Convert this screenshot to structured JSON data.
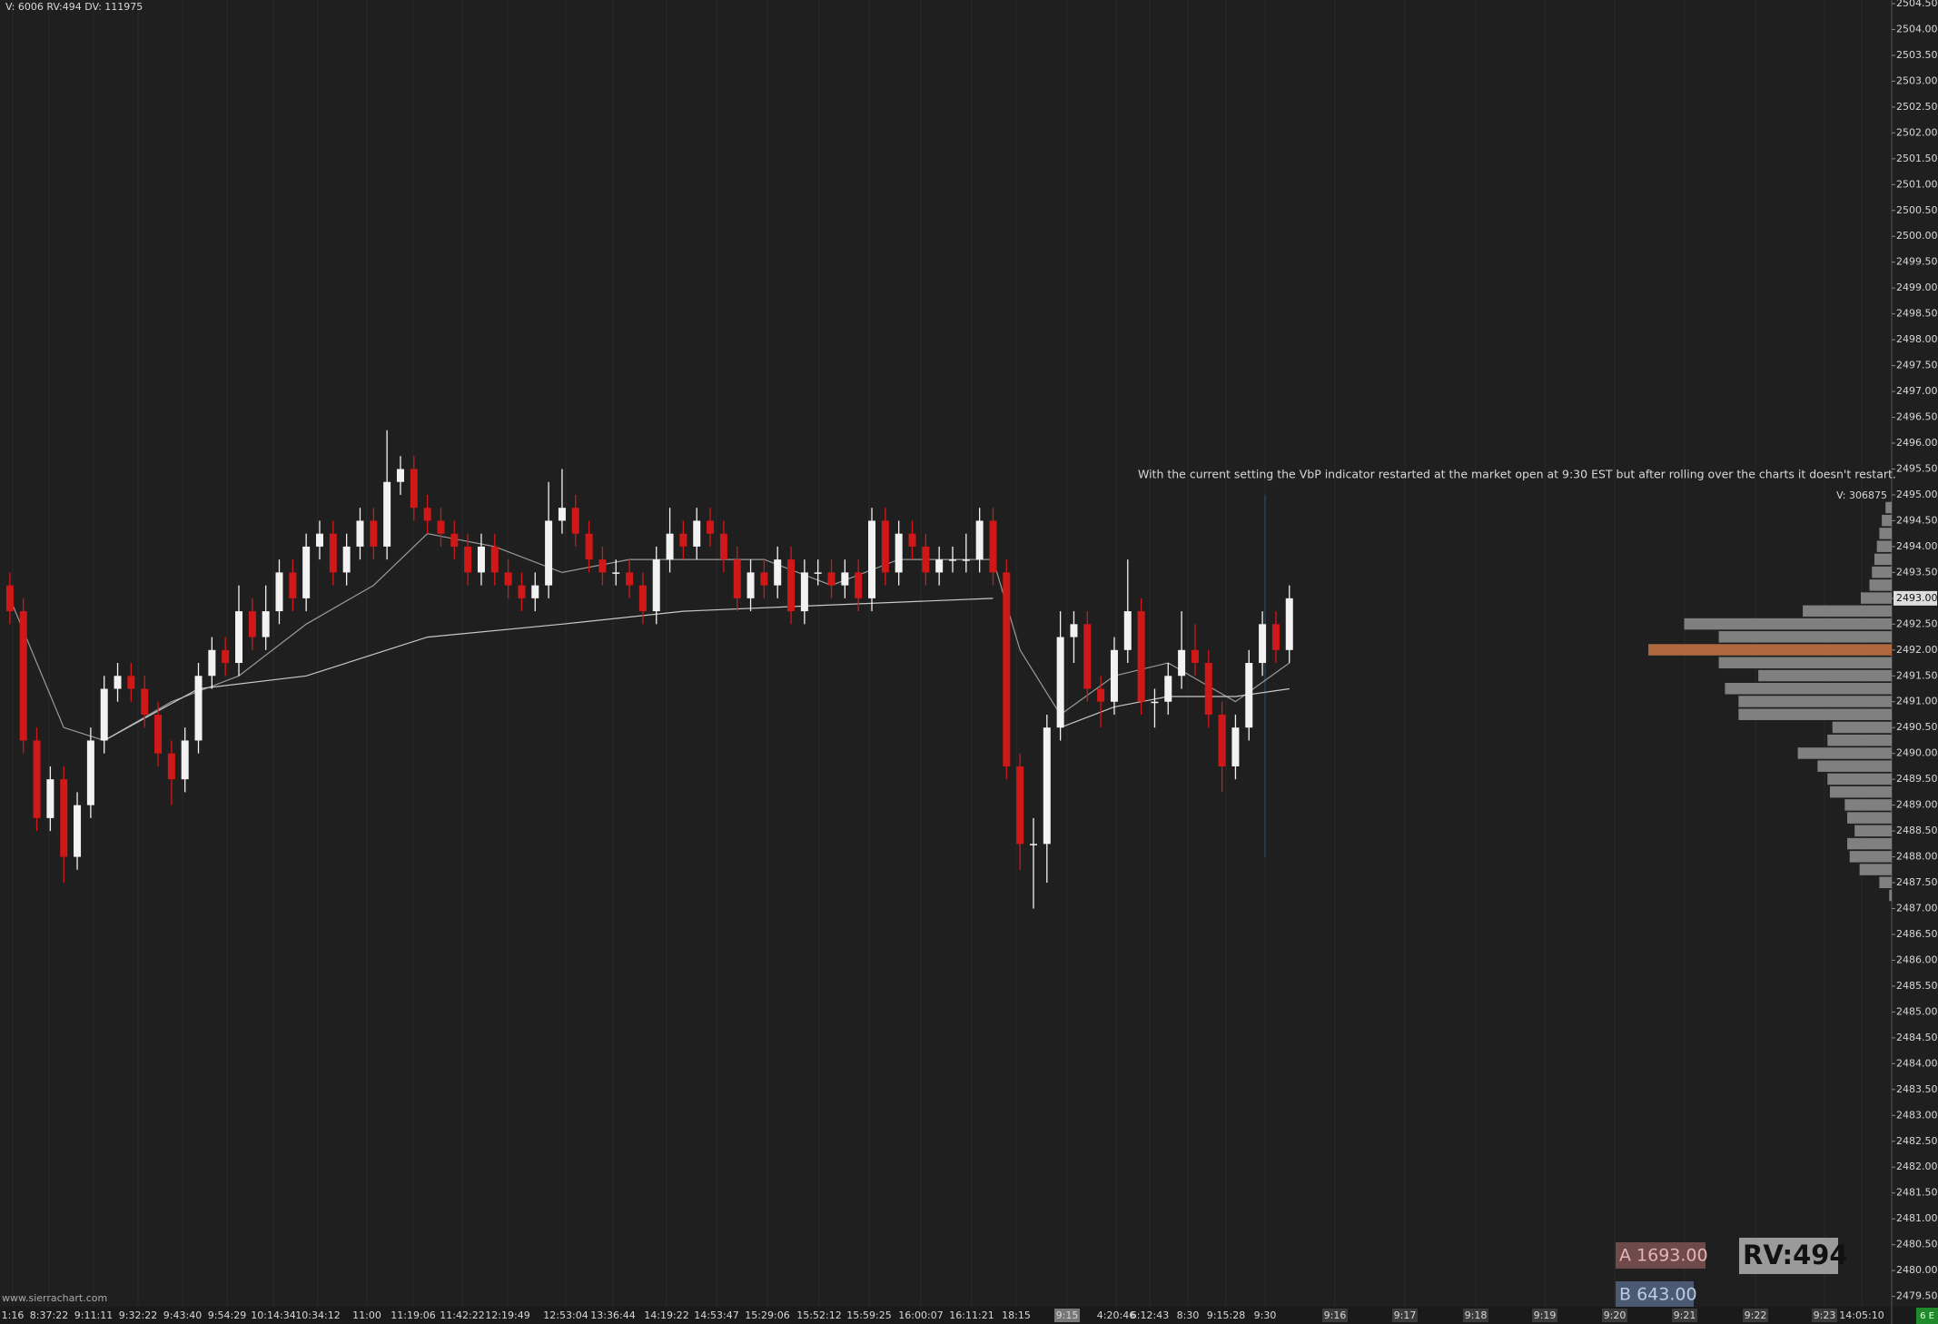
{
  "chart_data": {
    "type": "candlestick",
    "status_text": "V: 6006 RV:494 DV: 111975",
    "annotation": "With the current setting the VbP indicator restarted at the market open at 9:30 EST but after rolling over the charts it doesn't restart.",
    "profile_volume_text": "V: 306875",
    "watermark": "www.sierrachart.com",
    "ask_label": "A 1693.00",
    "bid_label": "B 643.00",
    "rv_label": "RV:494",
    "symbol_badge": "6 E",
    "up_color": "#f2f2f2",
    "down_color": "#d01818",
    "ylim": [
      2479.3,
      2504.57
    ],
    "yticks": [
      {
        "value": 2479.5,
        "label": "2479.50"
      },
      {
        "value": 2480,
        "label": "2480.00"
      },
      {
        "value": 2480.5,
        "label": "2480.50"
      },
      {
        "value": 2481,
        "label": "2481.00"
      },
      {
        "value": 2481.5,
        "label": "2481.50"
      },
      {
        "value": 2482,
        "label": "2482.00"
      },
      {
        "value": 2482.5,
        "label": "2482.50"
      },
      {
        "value": 2483,
        "label": "2483.00"
      },
      {
        "value": 2483.5,
        "label": "2483.50"
      },
      {
        "value": 2484,
        "label": "2484.00"
      },
      {
        "value": 2484.5,
        "label": "2484.50"
      },
      {
        "value": 2485,
        "label": "2485.00"
      },
      {
        "value": 2485.5,
        "label": "2485.50"
      },
      {
        "value": 2486,
        "label": "2486.00"
      },
      {
        "value": 2486.5,
        "label": "2486.50"
      },
      {
        "value": 2487,
        "label": "2487.00"
      },
      {
        "value": 2487.5,
        "label": "2487.50"
      },
      {
        "value": 2488,
        "label": "2488.00"
      },
      {
        "value": 2488.5,
        "label": "2488.50"
      },
      {
        "value": 2489,
        "label": "2489.00"
      },
      {
        "value": 2489.5,
        "label": "2489.50"
      },
      {
        "value": 2490,
        "label": "2490.00"
      },
      {
        "value": 2490.5,
        "label": "2490.50"
      },
      {
        "value": 2491,
        "label": "2491.00"
      },
      {
        "value": 2491.5,
        "label": "2491.50"
      },
      {
        "value": 2492,
        "label": "2492.00"
      },
      {
        "value": 2492.5,
        "label": "2492.50"
      },
      {
        "value": 2493,
        "label": "2493.00"
      },
      {
        "value": 2493.5,
        "label": "2493.50"
      },
      {
        "value": 2494,
        "label": "2494.00"
      },
      {
        "value": 2494.5,
        "label": "2494.50"
      },
      {
        "value": 2495,
        "label": "2495.00"
      },
      {
        "value": 2495.5,
        "label": "2495.50"
      },
      {
        "value": 2496,
        "label": "2496.00"
      },
      {
        "value": 2496.5,
        "label": "2496.50"
      },
      {
        "value": 2497,
        "label": "2497.00"
      },
      {
        "value": 2497.5,
        "label": "2497.50"
      },
      {
        "value": 2498,
        "label": "2498.00"
      },
      {
        "value": 2498.5,
        "label": "2498.50"
      },
      {
        "value": 2499,
        "label": "2499.00"
      },
      {
        "value": 2499.5,
        "label": "2499.50"
      },
      {
        "value": 2500,
        "label": "2500.00"
      },
      {
        "value": 2500.5,
        "label": "2500.50"
      },
      {
        "value": 2501,
        "label": "2501.00"
      },
      {
        "value": 2501.5,
        "label": "2501.50"
      },
      {
        "value": 2502,
        "label": "2502.00"
      },
      {
        "value": 2502.5,
        "label": "2502.50"
      },
      {
        "value": 2503,
        "label": "2503.00"
      },
      {
        "value": 2503.5,
        "label": "2503.50"
      },
      {
        "value": 2504,
        "label": "2504.00"
      },
      {
        "value": 2504.5,
        "label": "2504.50"
      }
    ],
    "time_labels": [
      "1:16",
      "8:37:22",
      "9:11:11",
      "9:32:22",
      "9:43:40",
      "9:54:29",
      "10:14:34",
      "10:34:12",
      "11:00",
      "11:19:06",
      "11:42:22",
      "12:19:49",
      "12:53:04",
      "13:36:44",
      "14:19:22",
      "14:53:47",
      "15:29:06",
      "15:52:12",
      "15:59:25",
      "16:00:07",
      "16:11:21",
      "18:15",
      "9:15",
      "4:20:46",
      "6:12:43",
      "8:30",
      "9:15:28",
      "9:30",
      "9:16",
      "9:17",
      "9:18",
      "9:19",
      "9:20",
      "9:21",
      "9:22",
      "9:23",
      "14:05:10"
    ],
    "candles": [
      [
        2493.25,
        2493.5,
        2492.5,
        2492.75
      ],
      [
        2492.75,
        2493,
        2490,
        2490.25
      ],
      [
        2490.25,
        2490.5,
        2488.5,
        2488.75
      ],
      [
        2488.75,
        2489.75,
        2488.5,
        2489.5
      ],
      [
        2489.5,
        2489.75,
        2487.5,
        2488
      ],
      [
        2488,
        2489.25,
        2487.75,
        2489
      ],
      [
        2489,
        2490.5,
        2488.75,
        2490.25
      ],
      [
        2490.25,
        2491.5,
        2490,
        2491.25
      ],
      [
        2491.25,
        2491.75,
        2491,
        2491.5
      ],
      [
        2491.5,
        2491.75,
        2491,
        2491.25
      ],
      [
        2491.25,
        2491.5,
        2490.5,
        2490.75
      ],
      [
        2490.75,
        2491,
        2489.75,
        2490
      ],
      [
        2490,
        2490.25,
        2489,
        2489.5
      ],
      [
        2489.5,
        2490.5,
        2489.25,
        2490.25
      ],
      [
        2490.25,
        2491.75,
        2490,
        2491.5
      ],
      [
        2491.5,
        2492.25,
        2491.25,
        2492
      ],
      [
        2492,
        2492.25,
        2491.5,
        2491.75
      ],
      [
        2491.75,
        2493.25,
        2491.5,
        2492.75
      ],
      [
        2492.75,
        2493,
        2492,
        2492.25
      ],
      [
        2492.25,
        2493.25,
        2492,
        2492.75
      ],
      [
        2492.75,
        2493.75,
        2492.5,
        2493.5
      ],
      [
        2493.5,
        2493.75,
        2492.75,
        2493
      ],
      [
        2493,
        2494.25,
        2492.75,
        2494
      ],
      [
        2494,
        2494.5,
        2493.75,
        2494.25
      ],
      [
        2494.25,
        2494.5,
        2493.25,
        2493.5
      ],
      [
        2493.5,
        2494.25,
        2493.25,
        2494
      ],
      [
        2494,
        2494.75,
        2493.75,
        2494.5
      ],
      [
        2494.5,
        2494.75,
        2493.75,
        2494
      ],
      [
        2494,
        2496.25,
        2493.75,
        2495.25
      ],
      [
        2495.25,
        2495.75,
        2495,
        2495.5
      ],
      [
        2495.5,
        2495.75,
        2494.5,
        2494.75
      ],
      [
        2494.75,
        2495,
        2494.25,
        2494.5
      ],
      [
        2494.5,
        2494.75,
        2494,
        2494.25
      ],
      [
        2494.25,
        2494.5,
        2493.75,
        2494
      ],
      [
        2494,
        2494.25,
        2493.25,
        2493.5
      ],
      [
        2493.5,
        2494.25,
        2493.25,
        2494
      ],
      [
        2494,
        2494.25,
        2493.25,
        2493.5
      ],
      [
        2493.5,
        2493.75,
        2493,
        2493.25
      ],
      [
        2493.25,
        2493.5,
        2492.75,
        2493
      ],
      [
        2493,
        2493.5,
        2492.75,
        2493.25
      ],
      [
        2493.25,
        2495.25,
        2493,
        2494.5
      ],
      [
        2494.5,
        2495.5,
        2494.25,
        2494.75
      ],
      [
        2494.75,
        2495,
        2494,
        2494.25
      ],
      [
        2494.25,
        2494.5,
        2493.5,
        2493.75
      ],
      [
        2493.75,
        2494,
        2493.25,
        2493.5
      ],
      [
        2493.5,
        2493.75,
        2493.25,
        2493.5
      ],
      [
        2493.5,
        2493.75,
        2493,
        2493.25
      ],
      [
        2493.25,
        2493.5,
        2492.5,
        2492.75
      ],
      [
        2492.75,
        2494,
        2492.5,
        2493.75
      ],
      [
        2493.75,
        2494.75,
        2493.5,
        2494.25
      ],
      [
        2494.25,
        2494.5,
        2493.75,
        2494
      ],
      [
        2494,
        2494.75,
        2493.75,
        2494.5
      ],
      [
        2494.5,
        2494.75,
        2494,
        2494.25
      ],
      [
        2494.25,
        2494.5,
        2493.5,
        2493.75
      ],
      [
        2493.75,
        2494,
        2492.75,
        2493
      ],
      [
        2493,
        2493.75,
        2492.75,
        2493.5
      ],
      [
        2493.5,
        2493.75,
        2493,
        2493.25
      ],
      [
        2493.25,
        2494,
        2493,
        2493.75
      ],
      [
        2493.75,
        2494,
        2492.5,
        2492.75
      ],
      [
        2492.75,
        2493.75,
        2492.5,
        2493.5
      ],
      [
        2493.5,
        2493.75,
        2493.25,
        2493.5
      ],
      [
        2493.5,
        2493.75,
        2493,
        2493.25
      ],
      [
        2493.25,
        2493.75,
        2493,
        2493.5
      ],
      [
        2493.5,
        2493.75,
        2492.75,
        2493
      ],
      [
        2493,
        2494.75,
        2492.75,
        2494.5
      ],
      [
        2494.5,
        2494.75,
        2493.25,
        2493.5
      ],
      [
        2493.5,
        2494.5,
        2493.25,
        2494.25
      ],
      [
        2494.25,
        2494.5,
        2493.75,
        2494
      ],
      [
        2494,
        2494.25,
        2493.25,
        2493.5
      ],
      [
        2493.5,
        2494,
        2493.25,
        2493.75
      ],
      [
        2493.75,
        2494,
        2493.5,
        2493.75
      ],
      [
        2493.75,
        2494.25,
        2493.5,
        2493.75
      ],
      [
        2493.75,
        2494.75,
        2493.5,
        2494.5
      ],
      [
        2494.5,
        2494.75,
        2493.25,
        2493.5
      ],
      [
        2493.5,
        2493.75,
        2489.5,
        2489.75
      ],
      [
        2489.75,
        2490,
        2487.75,
        2488.25
      ],
      [
        2488.25,
        2488.75,
        2487,
        2488.25
      ],
      [
        2488.25,
        2490.75,
        2487.5,
        2490.5
      ],
      [
        2490.5,
        2492.75,
        2490.25,
        2492.25
      ],
      [
        2492.25,
        2492.75,
        2491.75,
        2492.5
      ],
      [
        2492.5,
        2492.75,
        2491,
        2491.25
      ],
      [
        2491.25,
        2491.5,
        2490.5,
        2491
      ],
      [
        2491,
        2492.25,
        2490.75,
        2492
      ],
      [
        2492,
        2493.75,
        2491.75,
        2492.75
      ],
      [
        2492.75,
        2493,
        2490.75,
        2491
      ],
      [
        2491,
        2491.25,
        2490.5,
        2491
      ],
      [
        2491,
        2491.75,
        2490.75,
        2491.5
      ],
      [
        2491.5,
        2492.75,
        2491.25,
        2492
      ],
      [
        2492,
        2492.5,
        2491.5,
        2491.75
      ],
      [
        2491.75,
        2492,
        2490.5,
        2490.75
      ],
      [
        2490.75,
        2491,
        2489.25,
        2489.75
      ],
      [
        2489.75,
        2490.75,
        2489.5,
        2490.5
      ],
      [
        2490.5,
        2492,
        2490.25,
        2491.75
      ],
      [
        2491.75,
        2492.75,
        2491.5,
        2492.5
      ],
      [
        2492.5,
        2492.75,
        2491.75,
        2492
      ],
      [
        2492,
        2493.25,
        2491.75,
        2493
      ]
    ],
    "lines": [
      {
        "color": "#9a9a9a",
        "x": [
          0,
          4,
          7,
          12,
          17,
          22,
          27,
          31,
          36,
          41,
          46,
          51,
          56,
          61,
          66,
          71,
          73,
          75,
          78,
          82,
          86,
          91,
          95
        ],
        "values": [
          2493,
          2490.5,
          2490.25,
          2491,
          2491.5,
          2492.5,
          2493.25,
          2494.25,
          2494,
          2493.5,
          2493.75,
          2493.75,
          2493.75,
          2493.25,
          2493.75,
          2493.75,
          2493.75,
          2492,
          2490.75,
          2491.5,
          2491.75,
          2491,
          2491.75
        ]
      },
      {
        "color": "#c8c8c8",
        "x": [
          7,
          14,
          22,
          31,
          41,
          50,
          59,
          73,
          74,
          78,
          82,
          86,
          91,
          95
        ],
        "values": [
          2490.25,
          2491.25,
          2491.5,
          2492.25,
          2492.5,
          2492.75,
          2492.85,
          2493,
          null,
          2490.5,
          2490.9,
          2491.1,
          2491.1,
          2491.25
        ]
      }
    ],
    "volume_profile": {
      "xlim": [
        0,
        30000
      ],
      "color": "#808080",
      "poc_color": "#b0683f",
      "prices": [
        2494.75,
        2494.5,
        2494.25,
        2494,
        2493.75,
        2493.5,
        2493.25,
        2493,
        2492.75,
        2492.5,
        2492.25,
        2492,
        2491.75,
        2491.5,
        2491.25,
        2491,
        2490.75,
        2490.5,
        2490.25,
        2490,
        2489.75,
        2489.5,
        2489.25,
        2489,
        2488.75,
        2488.5,
        2488.25,
        2488,
        2487.75,
        2487.5,
        2487.25
      ],
      "volumes": [
        500,
        800,
        1000,
        1200,
        1400,
        1600,
        1800,
        2500,
        7200,
        16800,
        14000,
        19700,
        14000,
        10800,
        13500,
        12400,
        12400,
        4800,
        5200,
        7600,
        6000,
        5200,
        5000,
        3800,
        3600,
        3000,
        3600,
        3400,
        2600,
        1000,
        200
      ]
    }
  }
}
